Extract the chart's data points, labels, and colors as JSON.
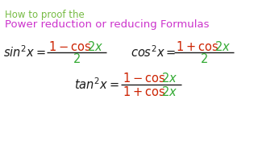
{
  "title_line1": "How to proof the",
  "title_line2": "Power reduction or reducing Formulas",
  "title_line1_color": "#77bb44",
  "title_line2_color": "#cc33cc",
  "color_black": "#1a1a1a",
  "color_red": "#cc2200",
  "color_green": "#33aa33",
  "background_color": "#ffffff",
  "fig_w": 3.2,
  "fig_h": 1.8,
  "dpi": 100
}
